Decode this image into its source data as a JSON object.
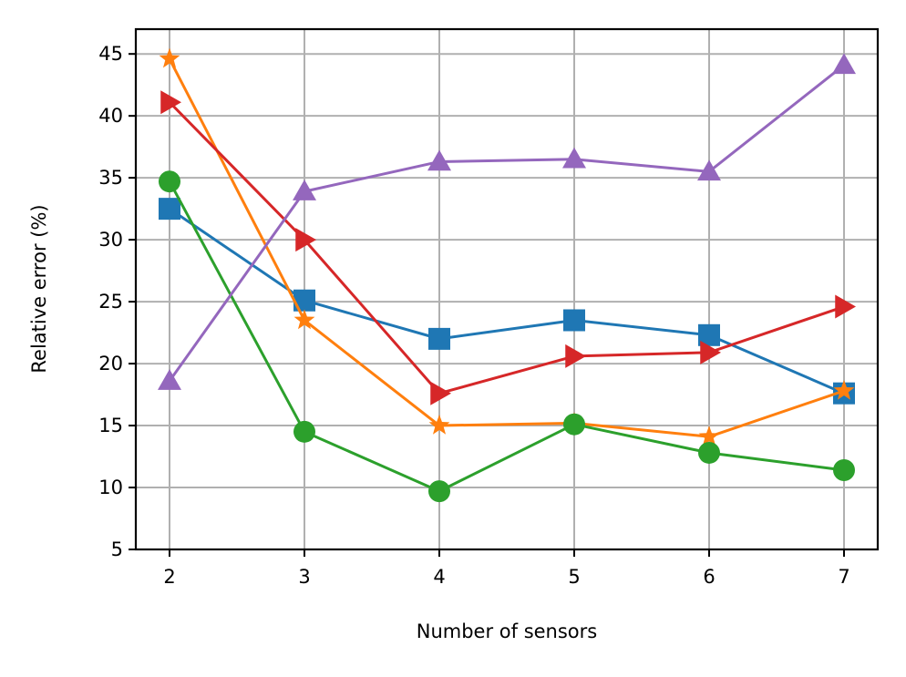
{
  "chart_data": {
    "type": "line",
    "title": "",
    "xlabel": "Number of sensors",
    "ylabel": "Relative error (%)",
    "x": [
      2,
      3,
      4,
      5,
      6,
      7
    ],
    "xlim": [
      1.75,
      7.25
    ],
    "ylim": [
      5,
      47
    ],
    "xticks": [
      "2",
      "3",
      "4",
      "5",
      "6",
      "7"
    ],
    "yticks": [
      5,
      10,
      15,
      20,
      25,
      30,
      35,
      40,
      45
    ],
    "grid": true,
    "legend": "none",
    "series": [
      {
        "color": "#1f77b4",
        "marker": "square",
        "values": [
          32.5,
          25.1,
          22.0,
          23.5,
          22.3,
          17.6
        ]
      },
      {
        "color": "#ff7f0e",
        "marker": "star",
        "values": [
          44.6,
          23.5,
          15.0,
          15.2,
          14.1,
          17.8
        ]
      },
      {
        "color": "#2ca02c",
        "marker": "circle",
        "values": [
          34.7,
          14.5,
          9.7,
          15.1,
          12.8,
          11.4
        ]
      },
      {
        "color": "#d62728",
        "marker": "triangle-right",
        "values": [
          41.1,
          30.0,
          17.6,
          20.6,
          20.9,
          24.6
        ]
      },
      {
        "color": "#9467bd",
        "marker": "triangle-up",
        "values": [
          18.6,
          33.9,
          36.3,
          36.5,
          35.5,
          44.1
        ]
      }
    ]
  }
}
